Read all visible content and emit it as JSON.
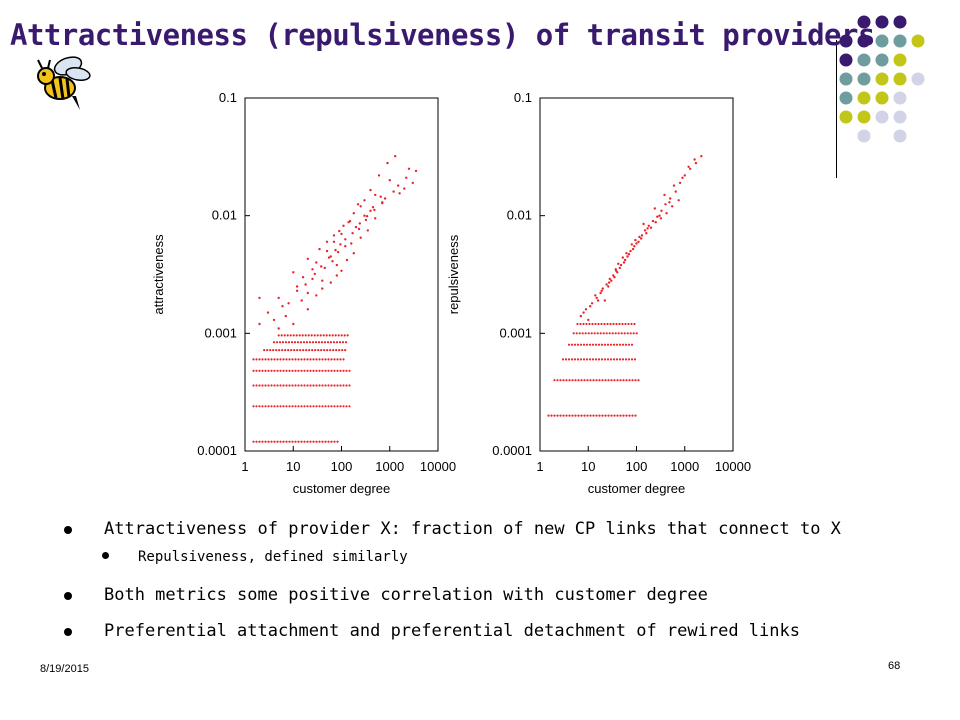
{
  "slide": {
    "title": "Attractiveness (repulsiveness) of transit providers",
    "bullets": [
      {
        "text": "Attractiveness of provider X: fraction of new CP links that connect to X",
        "level": 1
      },
      {
        "text": "Repulsiveness, defined similarly",
        "level": 2
      },
      {
        "text": "Both metrics some positive correlation with customer degree",
        "level": 1
      },
      {
        "text": "Preferential attachment and preferential detachment of rewired links",
        "level": 1
      }
    ],
    "footer_date": "8/19/2015",
    "page_number": "68"
  },
  "theme": {
    "title_color": "#3a1a6e",
    "dot_colors": [
      "#3a1a6e",
      "#6f9c9f",
      "#c2c619",
      "#d3d3e8"
    ],
    "marker_color": "#e8262a"
  },
  "chart_data": [
    {
      "type": "scatter",
      "title": "",
      "xlabel": "customer degree",
      "ylabel": "attractiveness",
      "x_scale": "log",
      "y_scale": "log",
      "xlim": [
        1,
        10000
      ],
      "ylim": [
        0.0001,
        0.1
      ],
      "x_ticks": [
        "1",
        "10",
        "100",
        "1000",
        "10000"
      ],
      "y_ticks": [
        "0.0001",
        "0.001",
        "0.01",
        "0.1"
      ],
      "bands": [
        {
          "y": 0.00012,
          "x_from": 1.5,
          "x_to": 90
        },
        {
          "y": 0.00024,
          "x_from": 1.5,
          "x_to": 160
        },
        {
          "y": 0.00036,
          "x_from": 1.5,
          "x_to": 160
        },
        {
          "y": 0.00048,
          "x_from": 1.5,
          "x_to": 150
        },
        {
          "y": 0.0006,
          "x_from": 1.5,
          "x_to": 110
        },
        {
          "y": 0.00072,
          "x_from": 2.5,
          "x_to": 120
        },
        {
          "y": 0.00084,
          "x_from": 4,
          "x_to": 130
        },
        {
          "y": 0.00096,
          "x_from": 5,
          "x_to": 150
        }
      ],
      "x": [
        2,
        3,
        5,
        8,
        12,
        16,
        20,
        25,
        30,
        40,
        50,
        60,
        70,
        80,
        100,
        120,
        150,
        200,
        250,
        300,
        400,
        500,
        700,
        1000,
        1500,
        2500,
        2,
        4,
        6,
        10,
        15,
        20,
        30,
        40,
        60,
        80,
        100,
        130,
        180,
        250,
        350,
        500,
        800,
        1200,
        2000,
        3000,
        10,
        20,
        35,
        50,
        70,
        90,
        110,
        140,
        180,
        220,
        300,
        400,
        600,
        900,
        1300,
        5,
        7,
        25,
        45,
        65,
        85,
        160,
        230,
        320,
        450,
        650,
        2200,
        3500,
        12,
        18,
        28,
        38,
        55,
        75,
        95,
        120,
        170,
        240,
        340,
        480,
        700,
        1600
      ],
      "y": [
        0.0012,
        0.0015,
        0.002,
        0.0018,
        0.0025,
        0.003,
        0.0022,
        0.0035,
        0.004,
        0.0028,
        0.005,
        0.0045,
        0.006,
        0.0038,
        0.007,
        0.0055,
        0.009,
        0.008,
        0.012,
        0.01,
        0.011,
        0.015,
        0.013,
        0.02,
        0.018,
        0.025,
        0.002,
        0.0013,
        0.0017,
        0.0012,
        0.0019,
        0.0016,
        0.0021,
        0.0024,
        0.0027,
        0.0031,
        0.0034,
        0.0042,
        0.0048,
        0.0065,
        0.0075,
        0.0095,
        0.014,
        0.016,
        0.017,
        0.019,
        0.0033,
        0.0043,
        0.0052,
        0.006,
        0.0068,
        0.0074,
        0.0082,
        0.0088,
        0.0105,
        0.0125,
        0.0135,
        0.0165,
        0.022,
        0.028,
        0.032,
        0.0011,
        0.0014,
        0.0029,
        0.0036,
        0.0041,
        0.0049,
        0.0058,
        0.0077,
        0.0092,
        0.0118,
        0.0145,
        0.021,
        0.024,
        0.0023,
        0.0026,
        0.0032,
        0.0037,
        0.0044,
        0.0051,
        0.0057,
        0.0063,
        0.0071,
        0.0086,
        0.0099,
        0.0112,
        0.0128,
        0.0155
      ]
    },
    {
      "type": "scatter",
      "title": "",
      "xlabel": "customer degree",
      "ylabel": "repulsiveness",
      "x_scale": "log",
      "y_scale": "log",
      "xlim": [
        1,
        10000
      ],
      "ylim": [
        0.0001,
        0.1
      ],
      "x_ticks": [
        "1",
        "10",
        "100",
        "1000",
        "10000"
      ],
      "y_ticks": [
        "0.0001",
        "0.001",
        "0.01",
        "0.1"
      ],
      "bands": [
        {
          "y": 0.0002,
          "x_from": 1.5,
          "x_to": 100
        },
        {
          "y": 0.0004,
          "x_from": 2,
          "x_to": 120
        },
        {
          "y": 0.0006,
          "x_from": 3,
          "x_to": 100
        },
        {
          "y": 0.0008,
          "x_from": 4,
          "x_to": 90
        },
        {
          "y": 0.001,
          "x_from": 5,
          "x_to": 110
        },
        {
          "y": 0.0012,
          "x_from": 6,
          "x_to": 100
        }
      ],
      "x": [
        7,
        9,
        12,
        15,
        18,
        22,
        26,
        30,
        35,
        40,
        45,
        55,
        65,
        75,
        90,
        110,
        130,
        150,
        180,
        220,
        270,
        330,
        400,
        500,
        650,
        800,
        1000,
        1300,
        1700,
        2200,
        8,
        11,
        14,
        19,
        24,
        28,
        33,
        38,
        48,
        58,
        70,
        85,
        100,
        125,
        160,
        200,
        250,
        320,
        420,
        550,
        750,
        20,
        42,
        62,
        95,
        140,
        240,
        380,
        600,
        900,
        1200,
        1600,
        10,
        16,
        27,
        37,
        52,
        80,
        115,
        170,
        300,
        480
      ],
      "y": [
        0.0014,
        0.0016,
        0.0018,
        0.002,
        0.0022,
        0.0019,
        0.0025,
        0.0028,
        0.003,
        0.0033,
        0.0036,
        0.004,
        0.0045,
        0.005,
        0.0055,
        0.006,
        0.0068,
        0.0075,
        0.0082,
        0.009,
        0.0098,
        0.011,
        0.0125,
        0.014,
        0.016,
        0.019,
        0.022,
        0.025,
        0.028,
        0.032,
        0.0015,
        0.0017,
        0.0021,
        0.0023,
        0.0026,
        0.0029,
        0.0031,
        0.0034,
        0.0038,
        0.0042,
        0.0047,
        0.0052,
        0.0058,
        0.0064,
        0.0071,
        0.0079,
        0.0088,
        0.0095,
        0.0105,
        0.012,
        0.0135,
        0.0024,
        0.0039,
        0.0048,
        0.0062,
        0.0085,
        0.0115,
        0.015,
        0.018,
        0.021,
        0.026,
        0.03,
        0.0013,
        0.0019,
        0.0027,
        0.0035,
        0.0044,
        0.0057,
        0.0066,
        0.0078,
        0.01,
        0.013
      ]
    }
  ]
}
